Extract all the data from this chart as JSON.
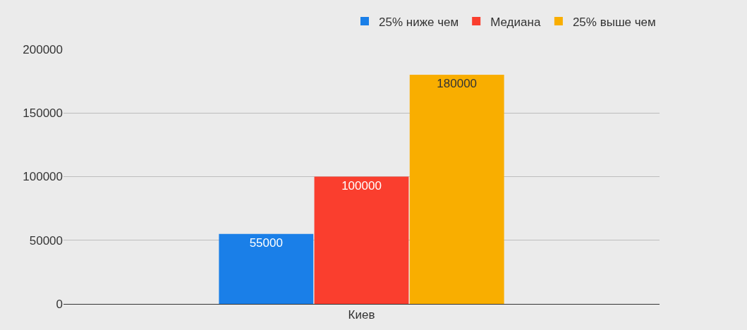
{
  "chart_data": {
    "type": "bar",
    "categories": [
      "Киев"
    ],
    "series": [
      {
        "name": "25% ниже чем",
        "color": "#1a7fe8",
        "values": [
          55000
        ]
      },
      {
        "name": "Медиана",
        "color": "#fa3e2e",
        "values": [
          100000
        ]
      },
      {
        "name": "25% выше чем",
        "color": "#f9ae00",
        "values": [
          180000
        ]
      }
    ],
    "ylim": [
      0,
      200000
    ],
    "yticks": [
      0,
      50000,
      100000,
      150000,
      200000
    ],
    "grid": "y",
    "legend": "top right",
    "data_labels": true
  }
}
